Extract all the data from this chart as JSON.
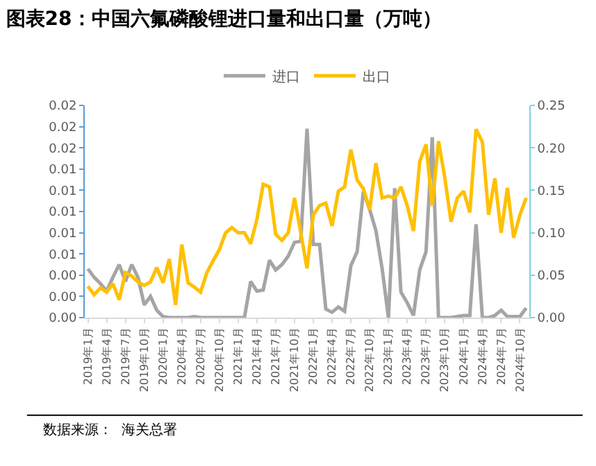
{
  "chart_data": {
    "type": "line",
    "title": "图表28：中国六氟磷酸锂进口量和出口量（万吨）",
    "categories": [
      "2019年1月",
      null,
      null,
      "2019年4月",
      null,
      null,
      "2019年7月",
      null,
      null,
      "2019年10月",
      null,
      null,
      "2020年1月",
      null,
      null,
      "2020年4月",
      null,
      null,
      "2020年7月",
      null,
      null,
      "2020年10月",
      null,
      null,
      "2021年1月",
      null,
      null,
      "2021年4月",
      null,
      null,
      "2021年7月",
      null,
      null,
      "2021年10月",
      null,
      null,
      "2022年1月",
      null,
      null,
      "2022年4月",
      null,
      null,
      "2022年7月",
      null,
      null,
      "2022年10月",
      null,
      null,
      "2023年1月",
      null,
      null,
      "2023年4月",
      null,
      null,
      "2023年7月",
      null,
      null,
      "2023年10月",
      null,
      null,
      "2024年1月",
      null,
      null,
      "2024年4月",
      null,
      null,
      "2024年7月",
      null,
      null,
      "2024年10月",
      null
    ],
    "series": [
      {
        "name": "进口",
        "color": "#a5a5a5",
        "axis": "y",
        "values": [
          0.0046,
          0.0038,
          0.0032,
          0.0025,
          0.0038,
          0.005,
          0.0034,
          0.005,
          0.0038,
          0.0012,
          0.002,
          0.0007,
          0.0001,
          0,
          0,
          0,
          0,
          0.0001,
          0,
          0,
          0,
          0,
          0,
          0,
          0,
          0,
          0.0034,
          0.0025,
          0.0026,
          0.0054,
          0.0045,
          0.005,
          0.0058,
          0.0071,
          0.0072,
          0.0178,
          0.0069,
          0.0069,
          0.0008,
          0.0005,
          0.001,
          0.0006,
          0.0049,
          0.0062,
          0.0119,
          0.0102,
          0.0082,
          0.0046,
          0,
          0.0122,
          0.0024,
          0.0014,
          0.0002,
          0.0045,
          0.0062,
          0.017,
          0,
          0,
          0,
          0.0001,
          0.0002,
          0.0002,
          0.0088,
          0,
          0,
          0.0002,
          0.0007,
          0.0001,
          0.0001,
          0.0001,
          0.0009
        ]
      },
      {
        "name": "出口",
        "color": "#ffc000",
        "axis": "y2",
        "values": [
          0.037,
          0.027,
          0.035,
          0.03,
          0.04,
          0.021,
          0.053,
          0.049,
          0.042,
          0.038,
          0.042,
          0.059,
          0.041,
          0.069,
          0.015,
          0.086,
          0.041,
          0.036,
          0.03,
          0.053,
          0.067,
          0.08,
          0.1,
          0.106,
          0.1,
          0.1,
          0.087,
          0.116,
          0.157,
          0.154,
          0.098,
          0.091,
          0.1,
          0.141,
          0.1,
          0.058,
          0.121,
          0.132,
          0.135,
          0.108,
          0.149,
          0.154,
          0.198,
          0.162,
          0.152,
          0.127,
          0.182,
          0.141,
          0.143,
          0.141,
          0.154,
          0.132,
          0.102,
          0.184,
          0.204,
          0.132,
          0.208,
          0.165,
          0.113,
          0.141,
          0.149,
          0.124,
          0.222,
          0.207,
          0.121,
          0.164,
          0.1,
          0.153,
          0.094,
          0.121,
          0.141
        ]
      }
    ],
    "ylim": [
      0,
      0.02
    ],
    "yticks": [
      {
        "value": 0,
        "label": "0.00"
      },
      {
        "value": 0.002,
        "label": "0.00"
      },
      {
        "value": 0.004,
        "label": "0.00"
      },
      {
        "value": 0.006,
        "label": "0.01"
      },
      {
        "value": 0.008,
        "label": "0.01"
      },
      {
        "value": 0.01,
        "label": "0.01"
      },
      {
        "value": 0.012,
        "label": "0.01"
      },
      {
        "value": 0.014,
        "label": "0.01"
      },
      {
        "value": 0.016,
        "label": "0.02"
      },
      {
        "value": 0.018,
        "label": "0.02"
      },
      {
        "value": 0.02,
        "label": "0.02"
      }
    ],
    "y2lim": [
      0,
      0.25
    ],
    "y2ticks": [
      {
        "value": 0,
        "label": "0.00"
      },
      {
        "value": 0.05,
        "label": "0.05"
      },
      {
        "value": 0.1,
        "label": "0.10"
      },
      {
        "value": 0.15,
        "label": "0.15"
      },
      {
        "value": 0.2,
        "label": "0.20"
      },
      {
        "value": 0.25,
        "label": "0.25"
      }
    ],
    "legend": "top",
    "marker": "none",
    "line_style": "solid",
    "annotations": [
      "数据来源：  海关总署"
    ]
  }
}
